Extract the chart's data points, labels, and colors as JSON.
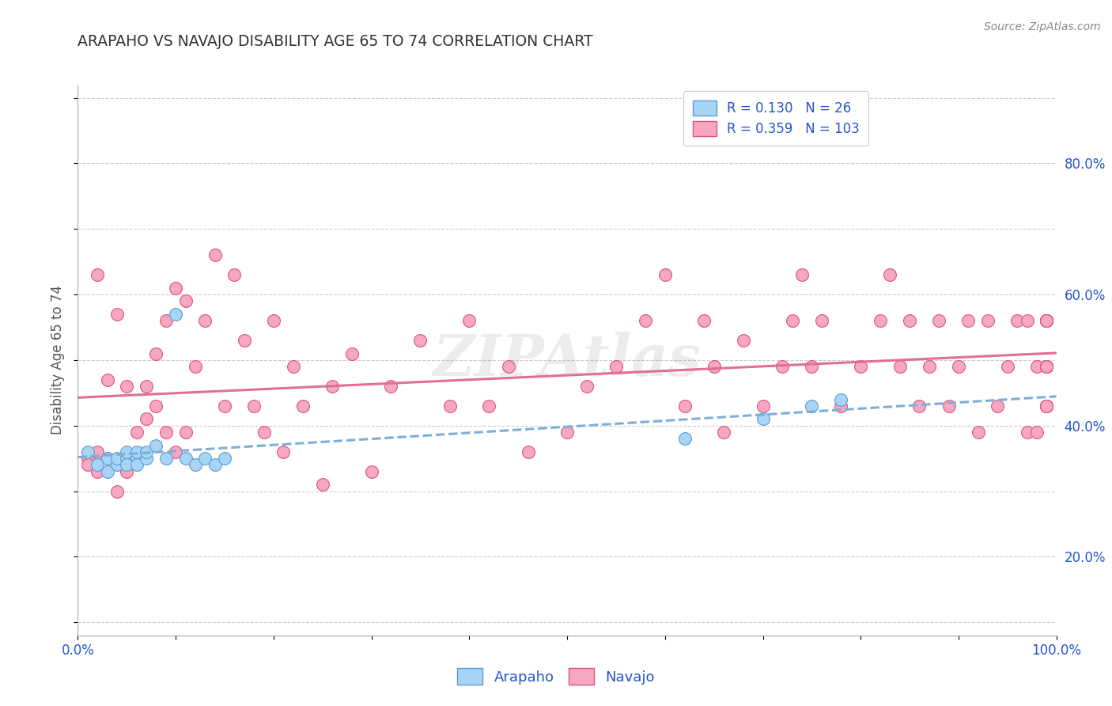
{
  "title": "ARAPAHO VS NAVAJO DISABILITY AGE 65 TO 74 CORRELATION CHART",
  "source": "Source: ZipAtlas.com",
  "ylabel": "Disability Age 65 to 74",
  "xlim": [
    0.0,
    1.0
  ],
  "ylim": [
    0.08,
    0.92
  ],
  "yticks": [
    0.2,
    0.4,
    0.6,
    0.8
  ],
  "ytick_labels": [
    "20.0%",
    "40.0%",
    "60.0%",
    "80.0%"
  ],
  "xtick_labels": [
    "0.0%",
    "",
    "",
    "",
    "",
    "",
    "",
    "",
    "",
    "",
    "100.0%"
  ],
  "arapaho_color": "#A8D4F5",
  "navajo_color": "#F5A8C0",
  "arapaho_edge": "#5B9BD5",
  "navajo_edge": "#E05080",
  "legend_R_color": "#2255CC",
  "arapaho_R": 0.13,
  "arapaho_N": 26,
  "navajo_R": 0.359,
  "navajo_N": 103,
  "arapaho_line_color": "#7BAFD4",
  "navajo_line_color": "#E07090",
  "arapaho_x": [
    0.01,
    0.02,
    0.03,
    0.03,
    0.04,
    0.04,
    0.05,
    0.05,
    0.05,
    0.06,
    0.06,
    0.06,
    0.07,
    0.07,
    0.08,
    0.09,
    0.1,
    0.11,
    0.12,
    0.13,
    0.14,
    0.15,
    0.62,
    0.7,
    0.75,
    0.78
  ],
  "arapaho_y": [
    0.36,
    0.34,
    0.35,
    0.33,
    0.34,
    0.35,
    0.35,
    0.34,
    0.36,
    0.35,
    0.36,
    0.34,
    0.35,
    0.36,
    0.37,
    0.35,
    0.57,
    0.35,
    0.34,
    0.35,
    0.34,
    0.35,
    0.38,
    0.41,
    0.43,
    0.44
  ],
  "navajo_x": [
    0.01,
    0.01,
    0.02,
    0.02,
    0.02,
    0.03,
    0.03,
    0.04,
    0.04,
    0.05,
    0.05,
    0.06,
    0.06,
    0.07,
    0.07,
    0.08,
    0.08,
    0.09,
    0.09,
    0.1,
    0.1,
    0.11,
    0.11,
    0.12,
    0.13,
    0.14,
    0.15,
    0.16,
    0.17,
    0.18,
    0.19,
    0.2,
    0.21,
    0.22,
    0.23,
    0.25,
    0.26,
    0.28,
    0.3,
    0.32,
    0.35,
    0.38,
    0.4,
    0.42,
    0.44,
    0.46,
    0.5,
    0.52,
    0.55,
    0.58,
    0.6,
    0.62,
    0.64,
    0.65,
    0.66,
    0.68,
    0.7,
    0.72,
    0.73,
    0.74,
    0.75,
    0.76,
    0.78,
    0.8,
    0.82,
    0.83,
    0.84,
    0.85,
    0.86,
    0.87,
    0.88,
    0.89,
    0.9,
    0.91,
    0.92,
    0.93,
    0.94,
    0.95,
    0.96,
    0.97,
    0.97,
    0.98,
    0.98,
    0.99,
    0.99,
    0.99,
    0.99,
    0.99,
    0.99,
    0.99,
    0.99,
    0.99,
    0.99,
    0.99,
    0.99,
    0.99,
    0.99,
    0.99,
    0.99,
    0.99,
    0.99,
    0.99,
    0.99
  ],
  "navajo_y": [
    0.35,
    0.34,
    0.36,
    0.33,
    0.63,
    0.35,
    0.47,
    0.3,
    0.57,
    0.33,
    0.46,
    0.35,
    0.39,
    0.41,
    0.46,
    0.43,
    0.51,
    0.39,
    0.56,
    0.36,
    0.61,
    0.39,
    0.59,
    0.49,
    0.56,
    0.66,
    0.43,
    0.63,
    0.53,
    0.43,
    0.39,
    0.56,
    0.36,
    0.49,
    0.43,
    0.31,
    0.46,
    0.51,
    0.33,
    0.46,
    0.53,
    0.43,
    0.56,
    0.43,
    0.49,
    0.36,
    0.39,
    0.46,
    0.49,
    0.56,
    0.63,
    0.43,
    0.56,
    0.49,
    0.39,
    0.53,
    0.43,
    0.49,
    0.56,
    0.63,
    0.49,
    0.56,
    0.43,
    0.49,
    0.56,
    0.63,
    0.49,
    0.56,
    0.43,
    0.49,
    0.56,
    0.43,
    0.49,
    0.56,
    0.39,
    0.56,
    0.43,
    0.49,
    0.56,
    0.39,
    0.56,
    0.39,
    0.49,
    0.56,
    0.43,
    0.56,
    0.49,
    0.56,
    0.43,
    0.56,
    0.49,
    0.56,
    0.43,
    0.56,
    0.49,
    0.56,
    0.43,
    0.56,
    0.49,
    0.56,
    0.43,
    0.49,
    0.56
  ]
}
